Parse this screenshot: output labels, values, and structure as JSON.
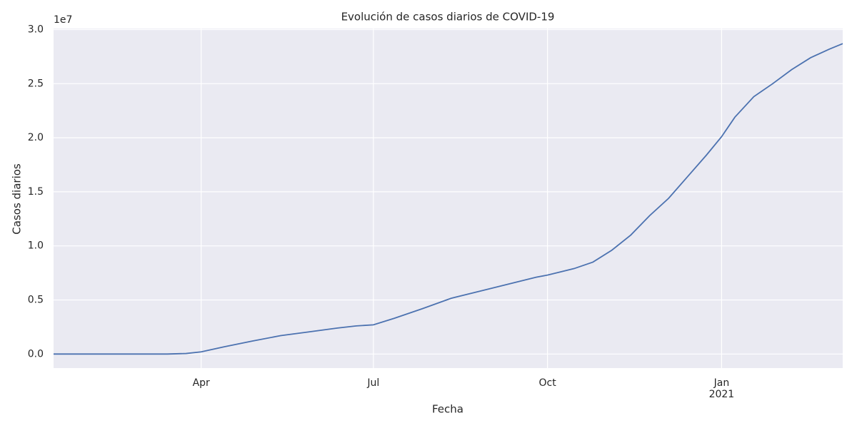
{
  "chart_data": {
    "type": "line",
    "title": "Evolución de casos diarios de COVID-19",
    "x_label": "Fecha",
    "y_label": "Casos diarios",
    "y_offset_label": "1e7",
    "x_year_label": "2021",
    "x": [
      0,
      20,
      40,
      60,
      70,
      78,
      90,
      105,
      120,
      135,
      150,
      160,
      169,
      180,
      195,
      210,
      225,
      240,
      255,
      261,
      275,
      285,
      295,
      305,
      315,
      325,
      335,
      345,
      353,
      360,
      370,
      380,
      390,
      400,
      410,
      417
    ],
    "series": [
      {
        "name": "Casos diarios",
        "color": "#4c72b0",
        "values": [
          0,
          0,
          0,
          0,
          0.005,
          0.02,
          0.066,
          0.12,
          0.17,
          0.205,
          0.24,
          0.26,
          0.27,
          0.33,
          0.42,
          0.515,
          0.58,
          0.645,
          0.71,
          0.73,
          0.79,
          0.85,
          0.96,
          1.1,
          1.28,
          1.44,
          1.64,
          1.84,
          2.01,
          2.19,
          2.38,
          2.5,
          2.63,
          2.74,
          2.82,
          2.87
        ]
      }
    ],
    "xlim": [
      0,
      417
    ],
    "xticks": [
      {
        "value": 78,
        "label": "Apr"
      },
      {
        "value": 169,
        "label": "Jul"
      },
      {
        "value": 261,
        "label": "Oct"
      },
      {
        "value": 353,
        "label": "Jan"
      }
    ],
    "ylim": [
      -0.13,
      3.01
    ],
    "yticks": [
      {
        "value": 0,
        "label": "0.0"
      },
      0.5,
      {
        "value": 1,
        "label": "1.0"
      },
      1.5,
      {
        "value": 2,
        "label": "2.0"
      },
      2.5,
      {
        "value": 3,
        "label": "3.0"
      }
    ],
    "grid": true,
    "background": "#eaeaf2"
  }
}
